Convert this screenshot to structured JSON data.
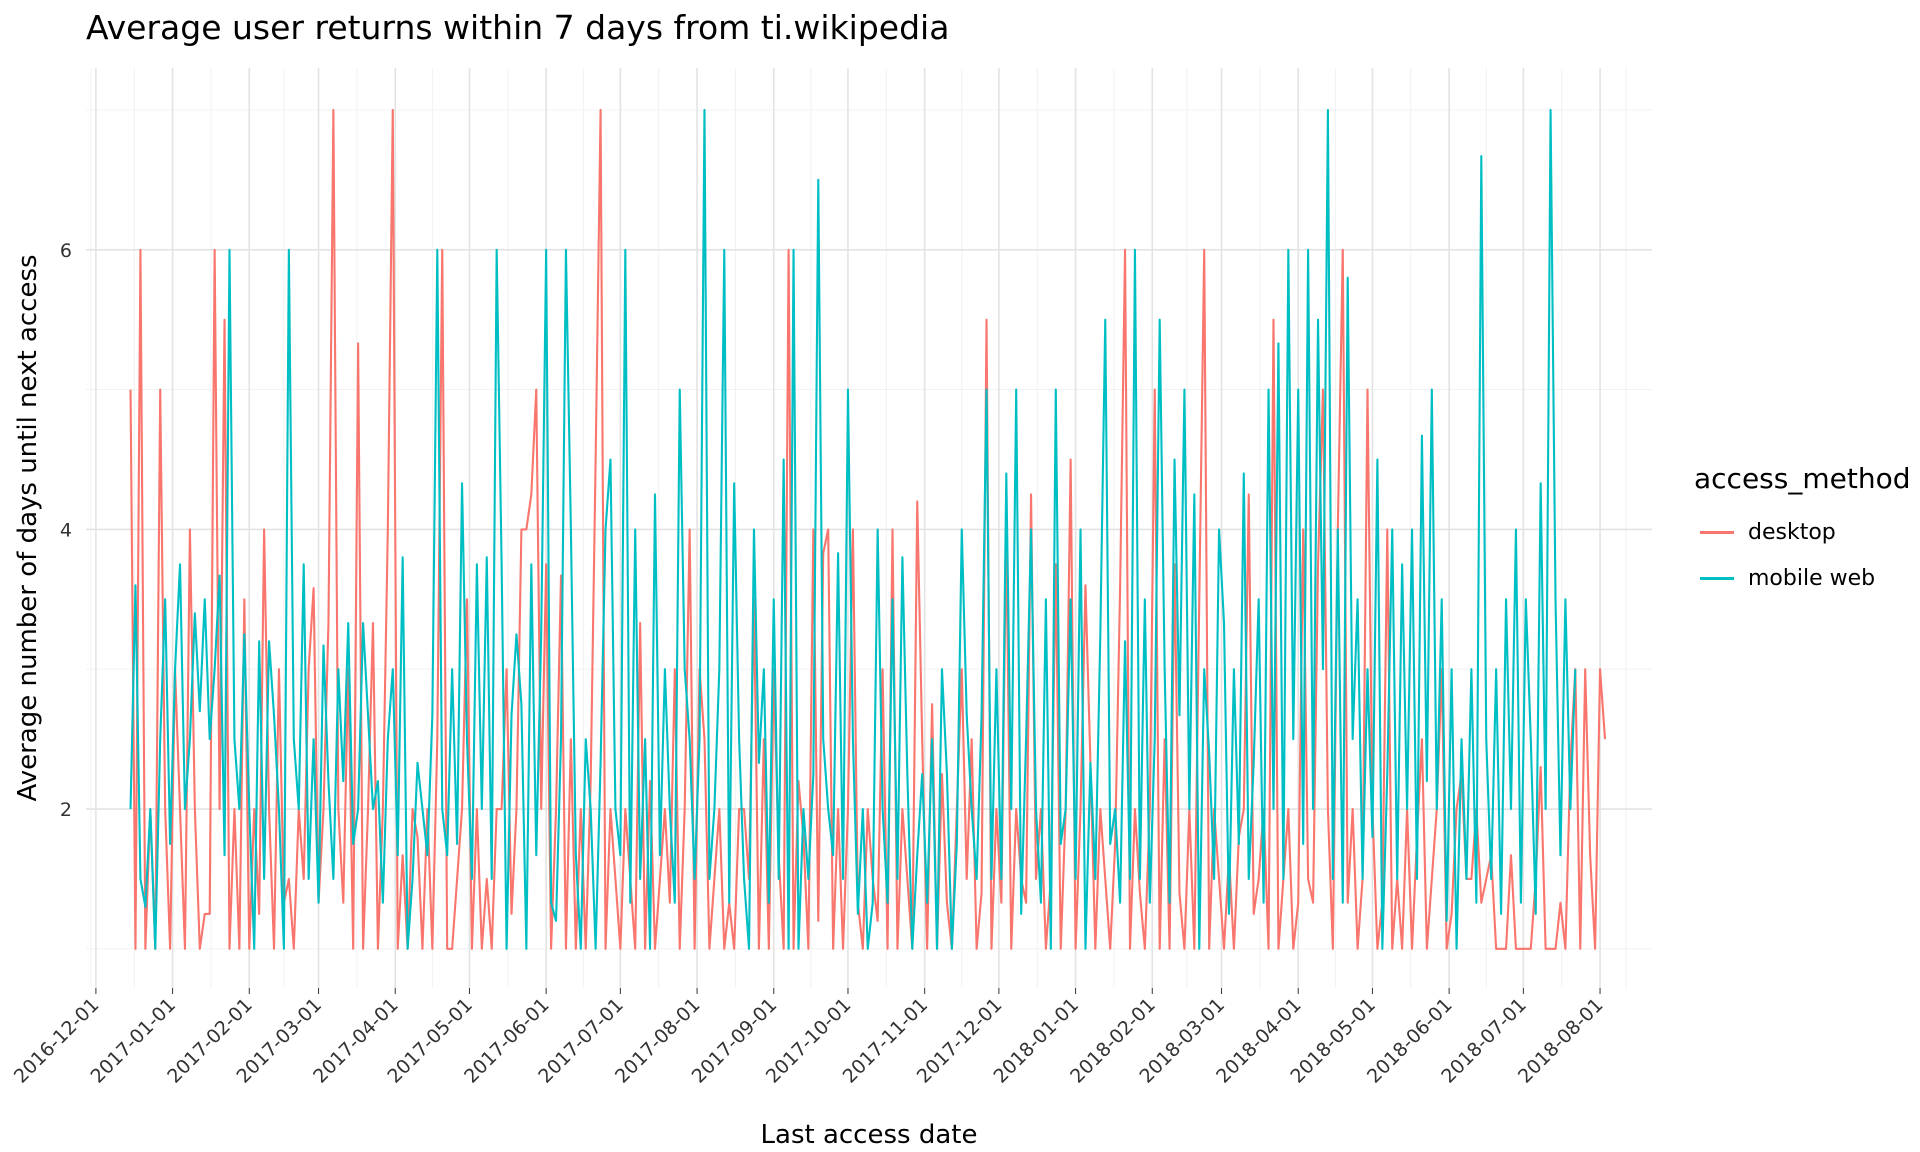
{
  "chart_data": {
    "type": "line",
    "title": "Average user returns within 7 days from ti.wikipedia",
    "xlabel": "Last access date",
    "ylabel": "Average number of days until next access",
    "x_range": [
      "2016-11-27",
      "2018-08-22"
    ],
    "ylim": [
      0.72,
      7.3
    ],
    "y_ticks": [
      2,
      4,
      6
    ],
    "x_ticks": [
      "2016-12-01",
      "2017-01-01",
      "2017-02-01",
      "2017-03-01",
      "2017-04-01",
      "2017-05-01",
      "2017-06-01",
      "2017-07-01",
      "2017-08-01",
      "2017-09-01",
      "2017-10-01",
      "2017-11-01",
      "2017-12-01",
      "2018-01-01",
      "2018-02-01",
      "2018-03-01",
      "2018-04-01",
      "2018-05-01",
      "2018-06-01",
      "2018-07-01",
      "2018-08-01"
    ],
    "grid": true,
    "legend": {
      "title": "access_method",
      "position": "right"
    },
    "series": [
      {
        "name": "desktop",
        "color": "#F8766D",
        "start": "2016-12-15",
        "values": [
          5,
          1,
          6,
          1,
          2,
          1,
          5,
          2,
          1,
          3,
          2,
          1,
          4,
          2,
          1,
          1.25,
          1.25,
          6,
          2,
          5.5,
          1,
          2,
          1,
          3.5,
          1,
          2,
          1.25,
          4,
          2,
          1,
          3,
          1.33,
          1.5,
          1,
          2,
          1.5,
          3,
          3.58,
          1.33,
          2,
          3.33,
          7,
          2,
          1.33,
          3,
          1,
          5.33,
          1,
          2,
          3.33,
          1,
          2,
          4,
          7,
          1,
          1.67,
          1,
          2,
          1.8,
          1,
          2,
          1,
          2.5,
          6,
          1,
          1,
          1.5,
          2,
          3.5,
          1,
          2,
          1,
          1.5,
          1,
          2,
          2,
          3,
          1.25,
          2,
          4,
          4,
          4.25,
          5,
          2,
          3.75,
          1,
          2,
          3.67,
          1,
          2.5,
          1,
          2,
          1,
          2.2,
          4.5,
          7,
          1,
          2,
          1.5,
          1,
          2,
          1.5,
          1,
          3.33,
          1,
          2.2,
          1,
          1.5,
          2,
          1.33,
          3,
          1,
          2,
          4,
          1,
          3,
          2.5,
          1,
          1.5,
          2,
          1,
          1.33,
          1,
          2,
          2,
          1.5,
          3.5,
          1,
          2.5,
          1,
          3,
          1.67,
          1,
          6,
          1,
          2.2,
          1.8,
          1,
          4,
          1.2,
          3.83,
          4,
          1,
          2,
          1,
          2,
          4,
          1.33,
          1,
          2,
          1.5,
          1.2,
          3,
          1,
          4,
          1,
          2,
          1.5,
          1,
          4.2,
          2.5,
          1,
          2.75,
          1,
          2.25,
          1.33,
          1,
          2,
          3,
          1.5,
          2.5,
          1,
          1.4,
          5.5,
          1,
          2,
          1.33,
          4,
          1,
          2,
          1.5,
          1.33,
          4.25,
          1.5,
          2,
          1,
          1.5,
          3.75,
          1,
          2,
          4.5,
          1,
          2,
          3.6,
          2.33,
          1,
          2,
          1.5,
          1,
          1.75,
          3.58,
          6,
          1,
          2,
          1.4,
          1,
          2,
          5,
          1,
          2.5,
          1,
          3.75,
          1.4,
          1,
          2,
          1,
          3.5,
          6,
          1,
          2,
          1.5,
          1,
          1.67,
          1,
          1.8,
          2,
          4.25,
          1.25,
          1.5,
          2,
          1,
          5.5,
          1,
          1.5,
          2,
          1,
          1.33,
          4,
          1.5,
          1.33,
          3.75,
          5,
          2,
          1,
          4,
          6,
          1.33,
          2,
          1,
          1.5,
          5,
          2,
          1,
          1.33,
          4,
          1,
          1.5,
          1,
          2,
          1,
          1.8,
          2.5,
          1,
          1.5,
          2,
          3,
          1,
          1.25,
          2,
          2.25,
          1.5,
          1.5,
          2,
          1.33,
          1.5,
          1.67,
          1,
          1,
          1,
          1.67,
          1,
          1,
          1,
          1,
          1.5,
          2.3,
          1,
          1,
          1,
          1.33,
          1,
          2.33,
          3,
          1,
          3,
          1.67,
          1,
          3,
          2.5
        ]
      },
      {
        "name": "mobile web",
        "color": "#00BFC4",
        "start": "2016-12-15",
        "values": [
          2,
          3.6,
          1.5,
          1.3,
          2,
          1,
          2.5,
          3.5,
          1.75,
          3,
          3.75,
          2,
          2.5,
          3.4,
          2.7,
          3.5,
          2.5,
          3,
          3.67,
          1.67,
          6,
          2.5,
          2,
          3.25,
          2,
          1,
          3.2,
          1.5,
          3.2,
          2.67,
          2,
          1,
          6,
          2.5,
          2,
          3.75,
          1.5,
          2.5,
          1.33,
          3.17,
          2.2,
          1.5,
          3,
          2.2,
          3.33,
          1.75,
          2,
          3.33,
          2.67,
          2,
          2.2,
          1.33,
          2.5,
          3,
          1.67,
          3.8,
          1,
          1.5,
          2.33,
          2,
          1.67,
          2.67,
          6,
          2,
          1.67,
          3,
          1.75,
          4.33,
          2.5,
          1.5,
          3.75,
          2,
          3.8,
          1.5,
          6,
          3.75,
          1,
          2.67,
          3.25,
          2.75,
          1,
          3.75,
          1.67,
          3.25,
          6,
          1.33,
          1.2,
          2.5,
          6,
          4,
          1.67,
          1,
          2.5,
          2,
          1,
          2.33,
          4,
          4.5,
          2,
          1.67,
          6,
          1.33,
          4,
          1.5,
          2.5,
          1,
          4.25,
          1.67,
          3,
          2,
          1.33,
          5,
          3,
          2.5,
          1.5,
          2.5,
          7,
          1.5,
          2,
          3,
          6,
          1.33,
          4.33,
          2.5,
          1.5,
          1,
          4,
          2.33,
          3,
          1.33,
          3.5,
          1.5,
          4.5,
          1,
          6,
          1,
          2,
          1.5,
          2.25,
          6.5,
          2.5,
          2,
          1.67,
          3.83,
          1.5,
          5,
          2.5,
          1.25,
          2,
          1,
          1.33,
          4,
          2,
          1.33,
          3.5,
          1.5,
          3.8,
          2.25,
          1,
          1.67,
          2.25,
          1.33,
          2.5,
          1,
          3,
          2.25,
          1,
          1.75,
          4,
          2.67,
          2,
          1.5,
          2.67,
          5,
          1.5,
          3,
          1.5,
          4.4,
          2,
          5,
          1.25,
          2.5,
          4,
          2,
          1.33,
          3.5,
          1,
          5,
          1.75,
          2,
          3.5,
          1.5,
          4,
          1,
          2.33,
          1.5,
          3.25,
          5.5,
          1.75,
          2,
          1.33,
          3.2,
          1.5,
          6,
          1.5,
          3.5,
          1.33,
          2.5,
          5.5,
          3,
          1.33,
          4.5,
          2.67,
          5,
          2,
          4.25,
          1,
          3,
          2.4,
          1.5,
          4,
          3.33,
          1.25,
          3,
          1.75,
          4.4,
          1.5,
          2.33,
          3.5,
          1.33,
          5,
          2,
          5.33,
          1.5,
          6,
          2.5,
          5,
          1.75,
          6,
          2,
          5.5,
          3,
          7,
          1.5,
          4,
          1.33,
          5.8,
          2.5,
          3.5,
          1.5,
          3,
          1.8,
          4.5,
          1,
          2.25,
          4,
          1.5,
          3.75,
          2,
          4,
          1.5,
          4.67,
          2.2,
          5,
          2,
          3.5,
          1.2,
          3,
          1,
          2.5,
          1.5,
          3,
          1.33,
          6.67,
          2.5,
          1.5,
          3,
          1.25,
          3.5,
          2,
          4,
          1.33,
          3.5,
          2.5,
          1.25,
          4.33,
          2,
          7,
          3.5,
          1.67,
          3.5,
          2,
          3
        ]
      }
    ]
  }
}
